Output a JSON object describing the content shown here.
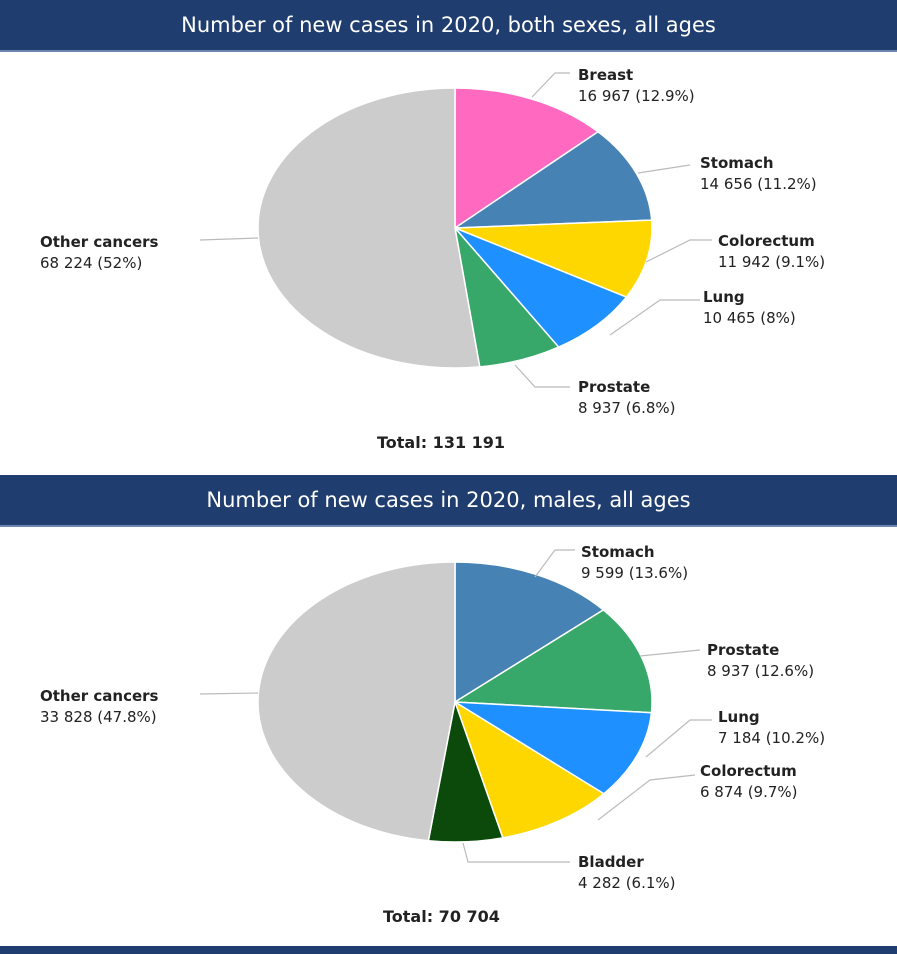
{
  "chart_data": [
    {
      "type": "pie",
      "title": "Number of new cases in 2020, both sexes, all ages",
      "total_label": "Total: 131 191",
      "slices": [
        {
          "name": "Breast",
          "value": 16967,
          "label": "16 967 (12.9%)",
          "percent": 12.9,
          "color": "#ff69c0"
        },
        {
          "name": "Stomach",
          "value": 14656,
          "label": "14 656 (11.2%)",
          "percent": 11.2,
          "color": "#4682b4"
        },
        {
          "name": "Colorectum",
          "value": 11942,
          "label": "11 942 (9.1%)",
          "percent": 9.1,
          "color": "#ffd700"
        },
        {
          "name": "Lung",
          "value": 10465,
          "label": "10 465 (8%)",
          "percent": 8,
          "color": "#1e90ff"
        },
        {
          "name": "Prostate",
          "value": 8937,
          "label": "8 937 (6.8%)",
          "percent": 6.8,
          "color": "#38a86a"
        },
        {
          "name": "Other cancers",
          "value": 68224,
          "label": "68 224 (52%)",
          "percent": 52,
          "color": "#cccccc"
        }
      ]
    },
    {
      "type": "pie",
      "title": "Number of new cases in 2020, males, all ages",
      "total_label": "Total: 70 704",
      "slices": [
        {
          "name": "Stomach",
          "value": 9599,
          "label": "9 599 (13.6%)",
          "percent": 13.6,
          "color": "#4682b4"
        },
        {
          "name": "Prostate",
          "value": 8937,
          "label": "8 937 (12.6%)",
          "percent": 12.6,
          "color": "#38a86a"
        },
        {
          "name": "Lung",
          "value": 7184,
          "label": "7 184 (10.2%)",
          "percent": 10.2,
          "color": "#1e90ff"
        },
        {
          "name": "Colorectum",
          "value": 6874,
          "label": "6 874 (9.7%)",
          "percent": 9.7,
          "color": "#ffd700"
        },
        {
          "name": "Bladder",
          "value": 4282,
          "label": "4 282 (6.1%)",
          "percent": 6.1,
          "color": "#0b4a0b"
        },
        {
          "name": "Other cancers",
          "value": 33828,
          "label": "33 828 (47.8%)",
          "percent": 47.8,
          "color": "#cccccc"
        }
      ]
    }
  ]
}
